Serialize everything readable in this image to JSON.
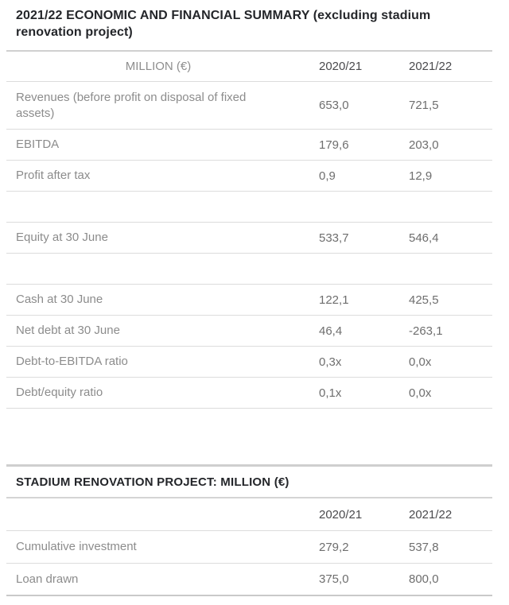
{
  "section1": {
    "title": "2021/22 ECONOMIC AND FINANCIAL SUMMARY (excluding stadium renovation project)",
    "header": {
      "col1": "MILLION (€)",
      "col2": "2020/21",
      "col3": "2021/22"
    },
    "rows": [
      {
        "label": "Revenues (before profit on disposal of fixed assets)",
        "fy2021": "653,0",
        "fy2022": "721,5"
      },
      {
        "label": "EBITDA",
        "fy2021": "179,6",
        "fy2022": "203,0"
      },
      {
        "label": "Profit after tax",
        "fy2021": "0,9",
        "fy2022": "12,9"
      },
      {
        "label": "",
        "fy2021": "",
        "fy2022": ""
      },
      {
        "label": "Equity at 30 June",
        "fy2021": "533,7",
        "fy2022": "546,4"
      },
      {
        "label": "",
        "fy2021": "",
        "fy2022": ""
      },
      {
        "label": "Cash at 30 June",
        "fy2021": "122,1",
        "fy2022": "425,5"
      },
      {
        "label": "Net debt at 30 June",
        "fy2021": "46,4",
        "fy2022": "-263,1"
      },
      {
        "label": "Debt-to-EBITDA ratio",
        "fy2021": "0,3x",
        "fy2022": "0,0x"
      },
      {
        "label": "Debt/equity ratio",
        "fy2021": "0,1x",
        "fy2022": "0,0x"
      }
    ]
  },
  "section2": {
    "title": "STADIUM RENOVATION PROJECT: MILLION (€)",
    "header": {
      "col1": "",
      "col2": "2020/21",
      "col3": "2021/22"
    },
    "rows": [
      {
        "label": "Cumulative investment",
        "fy2021": "279,2",
        "fy2022": "537,8"
      },
      {
        "label": "Loan drawn",
        "fy2021": "375,0",
        "fy2022": "800,0"
      }
    ]
  },
  "colors": {
    "background": "#ffffff",
    "title_text": "#24262a",
    "header_year_text": "#4a4a4d",
    "label_text": "#8c8c8c",
    "value_text": "#6e6e6e",
    "rule_light": "#dcdcdc",
    "rule_medium": "#d0d0d0"
  }
}
